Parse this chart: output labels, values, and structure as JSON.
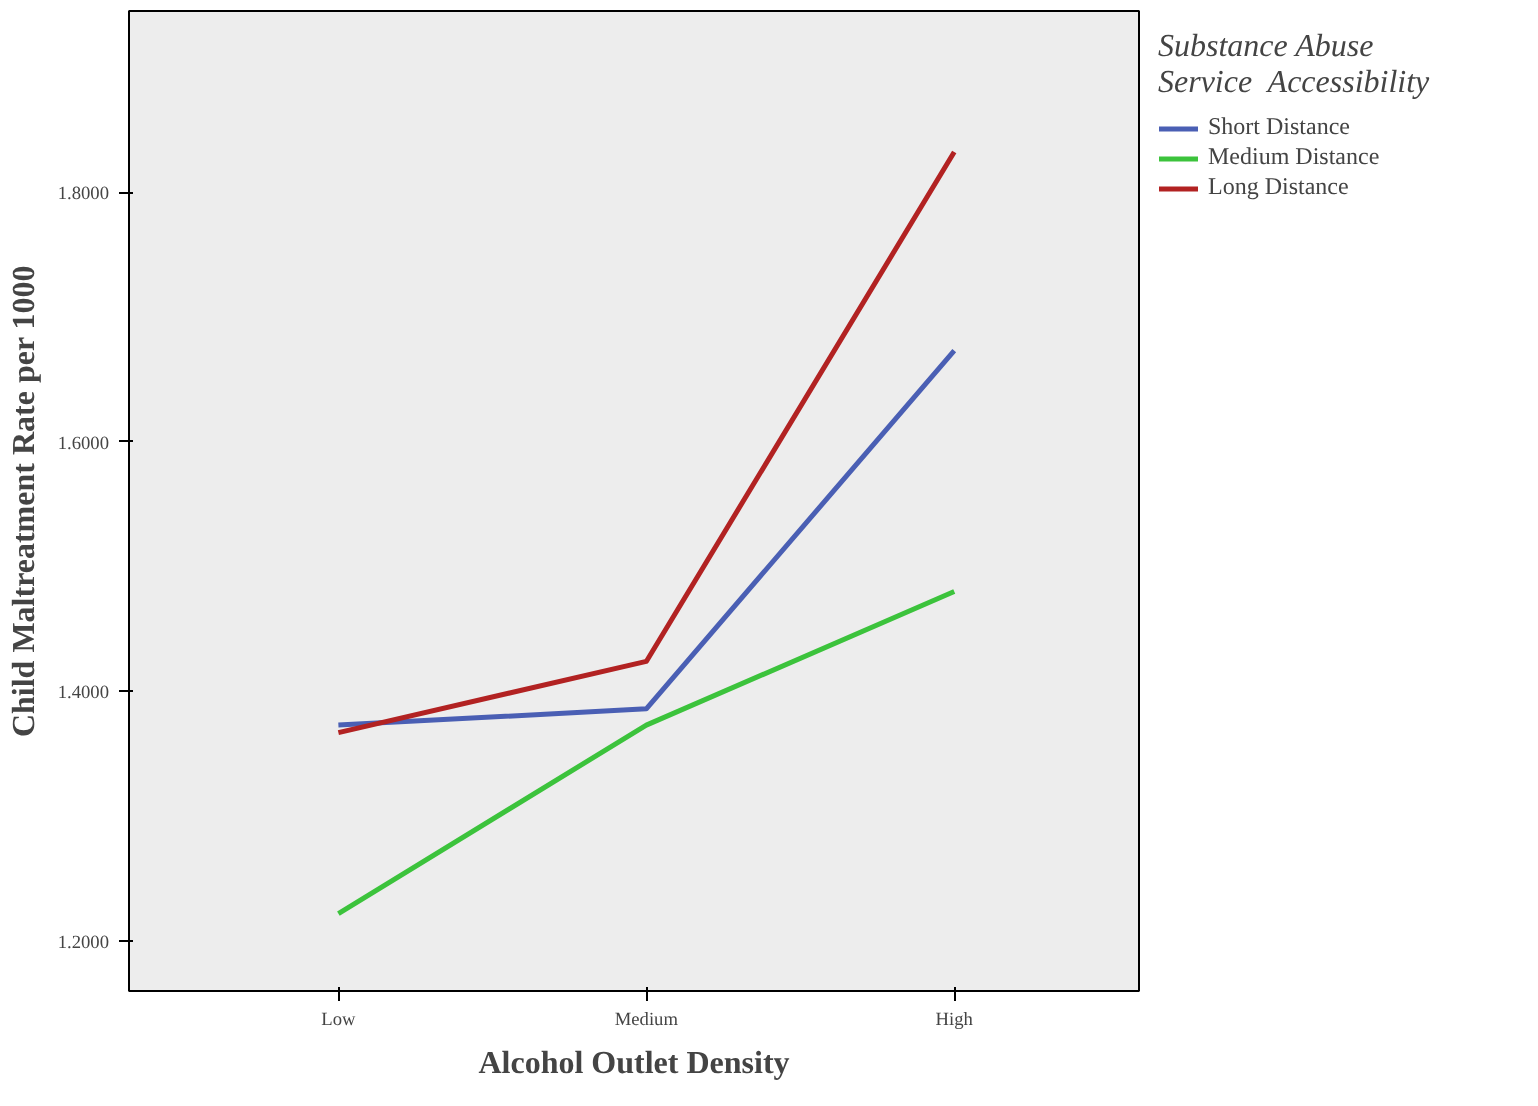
{
  "chart_data": {
    "type": "line",
    "xlabel": "Alcohol Outlet Density",
    "ylabel": "Child Maltreatment Rate per 1000",
    "legend_title": "Substance Abuse\nService  Accessibility",
    "categories": [
      "Low",
      "Medium",
      "High"
    ],
    "series": [
      {
        "name": "Short Distance",
        "color": "#4a5fb4",
        "values": [
          1.373,
          1.386,
          1.673
        ]
      },
      {
        "name": "Medium Distance",
        "color": "#3cc33c",
        "values": [
          1.222,
          1.373,
          1.48
        ]
      },
      {
        "name": "Long Distance",
        "color": "#b22222",
        "values": [
          1.367,
          1.424,
          1.832
        ]
      }
    ],
    "ylim": [
      1.16,
      1.945
    ],
    "yticks": [
      {
        "value": 1.2,
        "label": "1.2000"
      },
      {
        "value": 1.4,
        "label": "1.4000"
      },
      {
        "value": 1.6,
        "label": "1.6000"
      },
      {
        "value": 1.8,
        "label": "1.8000"
      }
    ],
    "grid": false,
    "legend": "top right",
    "marker": "none",
    "line_style": "solid"
  }
}
